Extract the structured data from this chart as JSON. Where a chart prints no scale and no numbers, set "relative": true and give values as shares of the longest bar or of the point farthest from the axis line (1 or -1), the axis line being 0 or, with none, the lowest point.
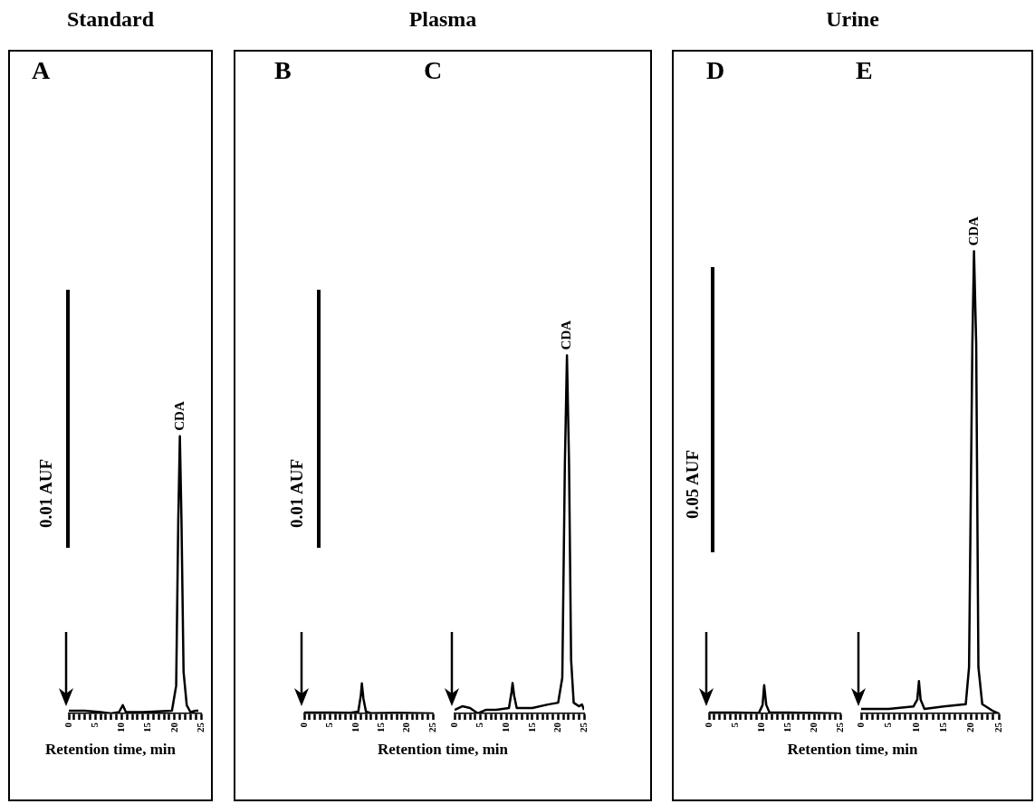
{
  "chart_data": [
    {
      "type": "line",
      "title": "Standard",
      "subtitle": "A",
      "xlabel": "Retention time, min",
      "relative": true,
      "xlim": [
        0,
        25
      ],
      "xticks": [
        0,
        {
          "value": 1,
          "label": null
        },
        {
          "value": 2,
          "label": null
        },
        {
          "value": 3,
          "label": null
        },
        {
          "value": 4,
          "label": null
        },
        5,
        {
          "value": 6,
          "label": null
        },
        {
          "value": 7,
          "label": null
        },
        {
          "value": 8,
          "label": null
        },
        {
          "value": 9,
          "label": null
        },
        10,
        {
          "value": 11,
          "label": null
        },
        {
          "value": 12,
          "label": null
        },
        {
          "value": 13,
          "label": null
        },
        {
          "value": 14,
          "label": null
        },
        15,
        {
          "value": 16,
          "label": null
        },
        {
          "value": 17,
          "label": null
        },
        {
          "value": 18,
          "label": null
        },
        {
          "value": 19,
          "label": null
        },
        20,
        {
          "value": 21,
          "label": null
        },
        {
          "value": 22,
          "label": null
        },
        {
          "value": 23,
          "label": null
        },
        {
          "value": 24,
          "label": null
        },
        25
      ],
      "annotations": [
        "0.01 AUF",
        {
          "text": "CDA",
          "x": 21,
          "y": 1
        }
      ],
      "series": [
        {
          "color": "#000000",
          "x": [
            0,
            3,
            6,
            8,
            9.5,
            10.2,
            10.8,
            14,
            19.5,
            20.3,
            20.7,
            21,
            21.3,
            21.7,
            22.3,
            23,
            24,
            24.5
          ],
          "values": [
            0.01,
            0.01,
            0.005,
            0,
            0.005,
            0.03,
            0.005,
            0.005,
            0.01,
            0.1,
            0.7,
            1,
            0.7,
            0.15,
            0.03,
            0.005,
            0.01,
            0.01
          ]
        }
      ]
    },
    {
      "type": "line",
      "title": "Plasma",
      "subtitle": "B",
      "xlabel": "Retention time, min",
      "relative": true,
      "xlim": [
        0,
        25
      ],
      "xticks": [
        0,
        {
          "value": 1,
          "label": null
        },
        {
          "value": 2,
          "label": null
        },
        {
          "value": 3,
          "label": null
        },
        {
          "value": 4,
          "label": null
        },
        5,
        {
          "value": 6,
          "label": null
        },
        {
          "value": 7,
          "label": null
        },
        {
          "value": 8,
          "label": null
        },
        {
          "value": 9,
          "label": null
        },
        10,
        {
          "value": 11,
          "label": null
        },
        {
          "value": 12,
          "label": null
        },
        {
          "value": 13,
          "label": null
        },
        {
          "value": 14,
          "label": null
        },
        15,
        {
          "value": 16,
          "label": null
        },
        {
          "value": 17,
          "label": null
        },
        {
          "value": 18,
          "label": null
        },
        {
          "value": 19,
          "label": null
        },
        20,
        {
          "value": 21,
          "label": null
        },
        {
          "value": 22,
          "label": null
        },
        {
          "value": 23,
          "label": null
        },
        {
          "value": 24,
          "label": null
        },
        25
      ],
      "annotations": [
        "0.01 AUF"
      ],
      "series": [
        {
          "color": "#000000",
          "x": [
            0,
            5,
            9,
            10.5,
            11,
            11.2,
            11.5,
            12,
            13,
            18,
            25
          ],
          "values": [
            0.03,
            0.03,
            0.02,
            0.06,
            0.6,
            1,
            0.5,
            0.06,
            0.01,
            0.02,
            0
          ]
        }
      ]
    },
    {
      "type": "line",
      "subtitle": "C",
      "relative": true,
      "xlim": [
        0,
        25
      ],
      "xticks": [
        0,
        {
          "value": 1,
          "label": null
        },
        {
          "value": 2,
          "label": null
        },
        {
          "value": 3,
          "label": null
        },
        {
          "value": 4,
          "label": null
        },
        5,
        {
          "value": 6,
          "label": null
        },
        {
          "value": 7,
          "label": null
        },
        {
          "value": 8,
          "label": null
        },
        {
          "value": 9,
          "label": null
        },
        10,
        {
          "value": 11,
          "label": null
        },
        {
          "value": 12,
          "label": null
        },
        {
          "value": 13,
          "label": null
        },
        {
          "value": 14,
          "label": null
        },
        15,
        {
          "value": 16,
          "label": null
        },
        {
          "value": 17,
          "label": null
        },
        {
          "value": 18,
          "label": null
        },
        {
          "value": 19,
          "label": null
        },
        20,
        {
          "value": 21,
          "label": null
        },
        {
          "value": 22,
          "label": null
        },
        {
          "value": 23,
          "label": null
        },
        {
          "value": 24,
          "label": null
        },
        25
      ],
      "annotations": [
        {
          "text": "CDA",
          "x": 21.7,
          "y": 1
        }
      ],
      "series": [
        {
          "color": "#000000",
          "x": [
            0,
            1.5,
            3,
            4.5,
            6,
            8,
            10.5,
            11,
            11.2,
            11.5,
            12,
            15,
            18,
            20,
            20.8,
            21.3,
            21.7,
            22.1,
            22.5,
            23,
            24,
            24.6,
            25
          ],
          "values": [
            0.01,
            0.02,
            0.015,
            0,
            0.01,
            0.01,
            0.015,
            0.06,
            0.085,
            0.05,
            0.015,
            0.015,
            0.025,
            0.03,
            0.1,
            0.7,
            1,
            0.7,
            0.15,
            0.03,
            0.02,
            0.025,
            0.01
          ]
        }
      ]
    },
    {
      "type": "line",
      "title": "Urine",
      "subtitle": "D",
      "xlabel": "Retention time, min",
      "relative": true,
      "xlim": [
        0,
        25
      ],
      "xticks": [
        0,
        {
          "value": 1,
          "label": null
        },
        {
          "value": 2,
          "label": null
        },
        {
          "value": 3,
          "label": null
        },
        {
          "value": 4,
          "label": null
        },
        5,
        {
          "value": 6,
          "label": null
        },
        {
          "value": 7,
          "label": null
        },
        {
          "value": 8,
          "label": null
        },
        {
          "value": 9,
          "label": null
        },
        10,
        {
          "value": 11,
          "label": null
        },
        {
          "value": 12,
          "label": null
        },
        {
          "value": 13,
          "label": null
        },
        {
          "value": 14,
          "label": null
        },
        15,
        {
          "value": 16,
          "label": null
        },
        {
          "value": 17,
          "label": null
        },
        {
          "value": 18,
          "label": null
        },
        {
          "value": 19,
          "label": null
        },
        20,
        {
          "value": 21,
          "label": null
        },
        {
          "value": 22,
          "label": null
        },
        {
          "value": 23,
          "label": null
        },
        {
          "value": 24,
          "label": null
        },
        25
      ],
      "annotations": [
        "0.05 AUF"
      ],
      "series": [
        {
          "color": "#000000",
          "x": [
            0,
            5,
            9.5,
            10.2,
            10.5,
            10.9,
            11.5,
            15,
            20,
            24.5
          ],
          "values": [
            0.03,
            0.03,
            0.02,
            0.3,
            1,
            0.3,
            0.04,
            0.03,
            0.02,
            0
          ]
        }
      ]
    },
    {
      "type": "line",
      "subtitle": "E",
      "relative": true,
      "xlim": [
        0,
        25
      ],
      "xticks": [
        0,
        {
          "value": 1,
          "label": null
        },
        {
          "value": 2,
          "label": null
        },
        {
          "value": 3,
          "label": null
        },
        {
          "value": 4,
          "label": null
        },
        5,
        {
          "value": 6,
          "label": null
        },
        {
          "value": 7,
          "label": null
        },
        {
          "value": 8,
          "label": null
        },
        {
          "value": 9,
          "label": null
        },
        10,
        {
          "value": 11,
          "label": null
        },
        {
          "value": 12,
          "label": null
        },
        {
          "value": 13,
          "label": null
        },
        {
          "value": 14,
          "label": null
        },
        15,
        {
          "value": 16,
          "label": null
        },
        {
          "value": 17,
          "label": null
        },
        {
          "value": 18,
          "label": null
        },
        {
          "value": 19,
          "label": null
        },
        20,
        {
          "value": 21,
          "label": null
        },
        {
          "value": 22,
          "label": null
        },
        {
          "value": 23,
          "label": null
        },
        {
          "value": 24,
          "label": null
        },
        25
      ],
      "annotations": [
        {
          "text": "CDA",
          "x": 20.5,
          "y": 1
        }
      ],
      "series": [
        {
          "color": "#000000",
          "x": [
            0,
            5,
            9.5,
            10.2,
            10.5,
            10.8,
            11.5,
            15,
            19,
            19.6,
            20.2,
            20.5,
            20.9,
            21.3,
            22,
            24,
            25
          ],
          "values": [
            0.01,
            0.01,
            0.015,
            0.03,
            0.07,
            0.03,
            0.01,
            0.015,
            0.02,
            0.1,
            0.8,
            1,
            0.8,
            0.1,
            0.02,
            0.005,
            0
          ]
        }
      ]
    }
  ]
}
